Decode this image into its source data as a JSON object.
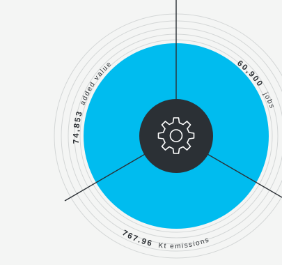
{
  "colors": {
    "background": "#f4f5f4",
    "disc": "#00bcef",
    "hub": "#2b3035",
    "lines": "#2b3035",
    "rings": "#d3d6d6",
    "hub_icon": "#ffffff"
  },
  "hub": {
    "icon": "gear-icon"
  },
  "metrics": [
    {
      "id": "added-value",
      "value": "74,853",
      "unit": "added value"
    },
    {
      "id": "jobs",
      "value": "60,900",
      "unit": "jobs"
    },
    {
      "id": "emissions",
      "value": "767.96",
      "unit": "Kt emissions"
    }
  ]
}
